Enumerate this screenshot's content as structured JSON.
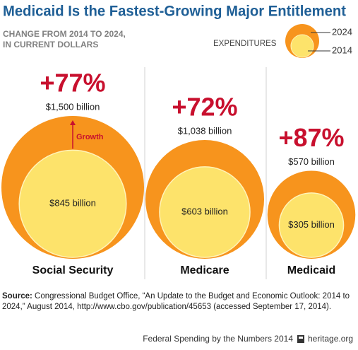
{
  "chart_data": {
    "type": "bubble",
    "title": "Medicaid Is the Fastest-Growing Major Entitlement",
    "subtitle": [
      "CHANGE FROM 2014 TO 2024,",
      "IN CURRENT DOLLARS"
    ],
    "legend_title": "EXPENDITURES",
    "categories": [
      "Social Security",
      "Medicare",
      "Medicaid"
    ],
    "series": [
      {
        "name": "2024",
        "color": "#f7941d",
        "values": [
          1500,
          1038,
          570
        ],
        "value_labels": [
          "$1,500 billion",
          "$1,038 billion",
          "$570 billion"
        ]
      },
      {
        "name": "2014",
        "color": "#fde36b",
        "values": [
          845,
          603,
          305
        ],
        "value_labels": [
          "$845 billion",
          "$603 billion",
          "$305 billion"
        ]
      }
    ],
    "growth": {
      "color": "#c8102e",
      "values": [
        77,
        72,
        87
      ],
      "value_labels": [
        "+77%",
        "+72%",
        "+87%"
      ]
    },
    "annotation": "Growth",
    "source_label": "Source:",
    "source": "Congressional Budget Office, “An Update to the Budget and Economic Outlook: 2014 to 2024,” August 2014, http://www.cbo.gov/publication/45653 (accessed September 17, 2014).",
    "footer": "Federal Spending by the Numbers 2014",
    "footer_site": "heritage.org"
  }
}
